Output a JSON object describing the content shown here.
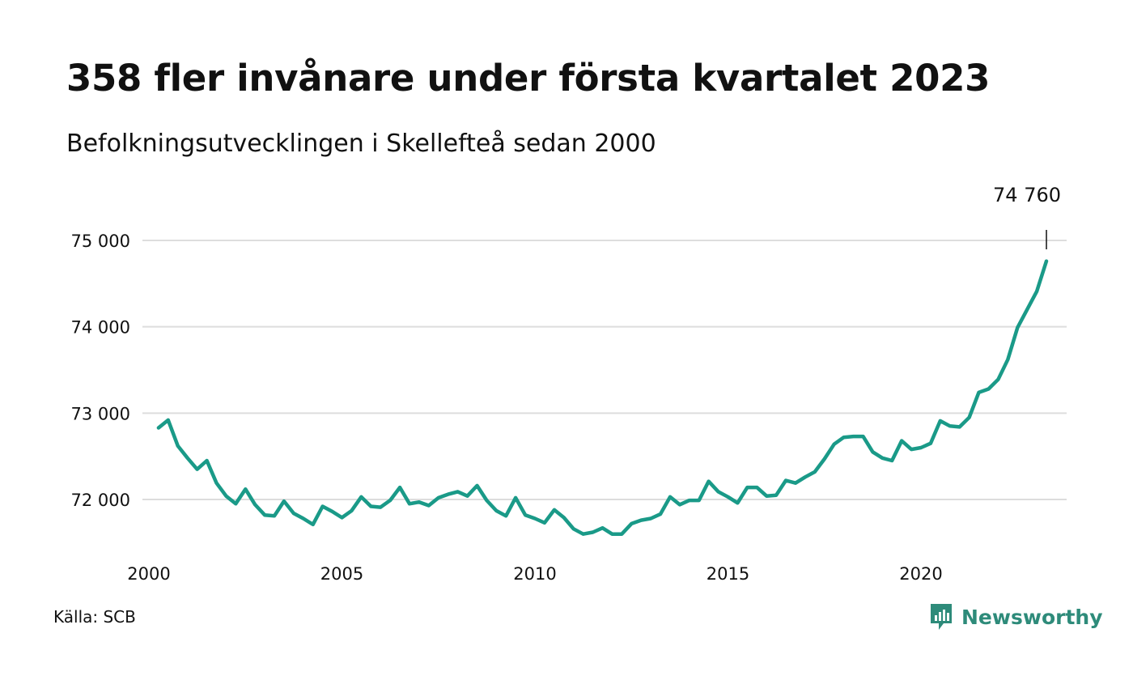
{
  "title": "358 fler invånare under första kvartalet 2023",
  "subtitle": "Befolkningsutvecklingen i Skellefteå sedan 2000",
  "source": "Källa: SCB",
  "logo": {
    "text": "Newsworthy",
    "icon": "newsworthy-logo-icon"
  },
  "colors": {
    "line": "#1a9a88",
    "grid": "#dddddd",
    "text": "#111111",
    "brand": "#2e8b7a"
  },
  "chart_data": {
    "type": "line",
    "title": "358 fler invånare under första kvartalet 2023",
    "subtitle": "Befolkningsutvecklingen i Skellefteå sedan 2000",
    "x_ticks": [
      2000,
      2005,
      2010,
      2015,
      2020
    ],
    "x_tick_labels": [
      "2000",
      "2005",
      "2010",
      "2015",
      "2020"
    ],
    "y_ticks": [
      72000,
      73000,
      74000,
      75000
    ],
    "y_tick_labels": [
      "72 000",
      "73 000",
      "74 000",
      "75 000"
    ],
    "xlim": [
      2000,
      2024
    ],
    "ylim": [
      71400,
      75300
    ],
    "grid": true,
    "legend": "none",
    "annotation": {
      "label": "74 760",
      "x": 2023.25,
      "value": 74760
    },
    "series": [
      {
        "x": [
          2000.25,
          2000.5,
          2000.75,
          2001,
          2001.25,
          2001.5,
          2001.75,
          2002,
          2002.25,
          2002.5,
          2002.75,
          2003,
          2003.25,
          2003.5,
          2003.75,
          2004,
          2004.25,
          2004.5,
          2004.75,
          2005,
          2005.25,
          2005.5,
          2005.75,
          2006,
          2006.25,
          2006.5,
          2006.75,
          2007,
          2007.25,
          2007.5,
          2007.75,
          2008,
          2008.25,
          2008.5,
          2008.75,
          2009,
          2009.25,
          2009.5,
          2009.75,
          2010,
          2010.25,
          2010.5,
          2010.75,
          2011,
          2011.25,
          2011.5,
          2011.75,
          2012,
          2012.25,
          2012.5,
          2012.75,
          2013,
          2013.25,
          2013.5,
          2013.75,
          2014,
          2014.25,
          2014.5,
          2014.75,
          2015,
          2015.25,
          2015.5,
          2015.75,
          2016,
          2016.25,
          2016.5,
          2016.75,
          2017,
          2017.25,
          2017.5,
          2017.75,
          2018,
          2018.25,
          2018.5,
          2018.75,
          2019,
          2019.25,
          2019.5,
          2019.75,
          2020,
          2020.25,
          2020.5,
          2020.75,
          2021,
          2021.25,
          2021.5,
          2021.75,
          2022,
          2022.25,
          2022.5,
          2022.75,
          2023,
          2023.25
        ],
        "values": [
          72830,
          72920,
          72620,
          72480,
          72350,
          72450,
          72190,
          72040,
          71950,
          72120,
          71940,
          71820,
          71810,
          71980,
          71840,
          71780,
          71710,
          71920,
          71860,
          71790,
          71870,
          72030,
          71920,
          71910,
          71990,
          72140,
          71950,
          71970,
          71930,
          72020,
          72060,
          72090,
          72040,
          72160,
          71990,
          71870,
          71810,
          72020,
          71820,
          71780,
          71730,
          71880,
          71790,
          71660,
          71600,
          71620,
          71670,
          71600,
          71600,
          71720,
          71760,
          71780,
          71830,
          72030,
          71940,
          71990,
          71990,
          72210,
          72090,
          72030,
          71960,
          72140,
          72140,
          72040,
          72050,
          72220,
          72190,
          72260,
          72320,
          72470,
          72640,
          72720,
          72730,
          72730,
          72550,
          72480,
          72450,
          72680,
          72580,
          72600,
          72650,
          72910,
          72850,
          72840,
          72950,
          73240,
          73280,
          73390,
          73620,
          73990,
          74200,
          74410,
          74760
        ]
      }
    ]
  }
}
